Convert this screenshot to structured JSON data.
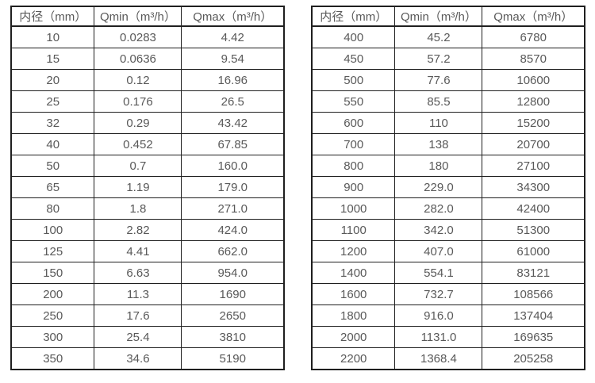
{
  "page": {
    "background": "#ffffff",
    "border_color": "#1f1f1f",
    "text_color": "#595959"
  },
  "tables": [
    {
      "name": "flow-range-table-small-diameters",
      "headers": [
        "内径（mm）",
        "Qmin（m³/h）",
        "Qmax（m³/h）"
      ],
      "rows": [
        [
          "10",
          "0.0283",
          "4.42"
        ],
        [
          "15",
          "0.0636",
          "9.54"
        ],
        [
          "20",
          "0.12",
          "16.96"
        ],
        [
          "25",
          "0.176",
          "26.5"
        ],
        [
          "32",
          "0.29",
          "43.42"
        ],
        [
          "40",
          "0.452",
          "67.85"
        ],
        [
          "50",
          "0.7",
          "160.0"
        ],
        [
          "65",
          "1.19",
          "179.0"
        ],
        [
          "80",
          "1.8",
          "271.0"
        ],
        [
          "100",
          "2.82",
          "424.0"
        ],
        [
          "125",
          "4.41",
          "662.0"
        ],
        [
          "150",
          "6.63",
          "954.0"
        ],
        [
          "200",
          "11.3",
          "1690"
        ],
        [
          "250",
          "17.6",
          "2650"
        ],
        [
          "300",
          "25.4",
          "3810"
        ],
        [
          "350",
          "34.6",
          "5190"
        ]
      ]
    },
    {
      "name": "flow-range-table-large-diameters",
      "headers": [
        "内径（mm）",
        "Qmin（m³/h）",
        "Qmax（m³/h）"
      ],
      "rows": [
        [
          "400",
          "45.2",
          "6780"
        ],
        [
          "450",
          "57.2",
          "8570"
        ],
        [
          "500",
          "77.6",
          "10600"
        ],
        [
          "550",
          "85.5",
          "12800"
        ],
        [
          "600",
          "110",
          "15200"
        ],
        [
          "700",
          "138",
          "20700"
        ],
        [
          "800",
          "180",
          "27100"
        ],
        [
          "900",
          "229.0",
          "34300"
        ],
        [
          "1000",
          "282.0",
          "42400"
        ],
        [
          "1100",
          "342.0",
          "51300"
        ],
        [
          "1200",
          "407.0",
          "61000"
        ],
        [
          "1400",
          "554.1",
          "83121"
        ],
        [
          "1600",
          "732.7",
          "108566"
        ],
        [
          "1800",
          "916.0",
          "137404"
        ],
        [
          "2000",
          "1131.0",
          "169635"
        ],
        [
          "2200",
          "1368.4",
          "205258"
        ]
      ]
    }
  ]
}
